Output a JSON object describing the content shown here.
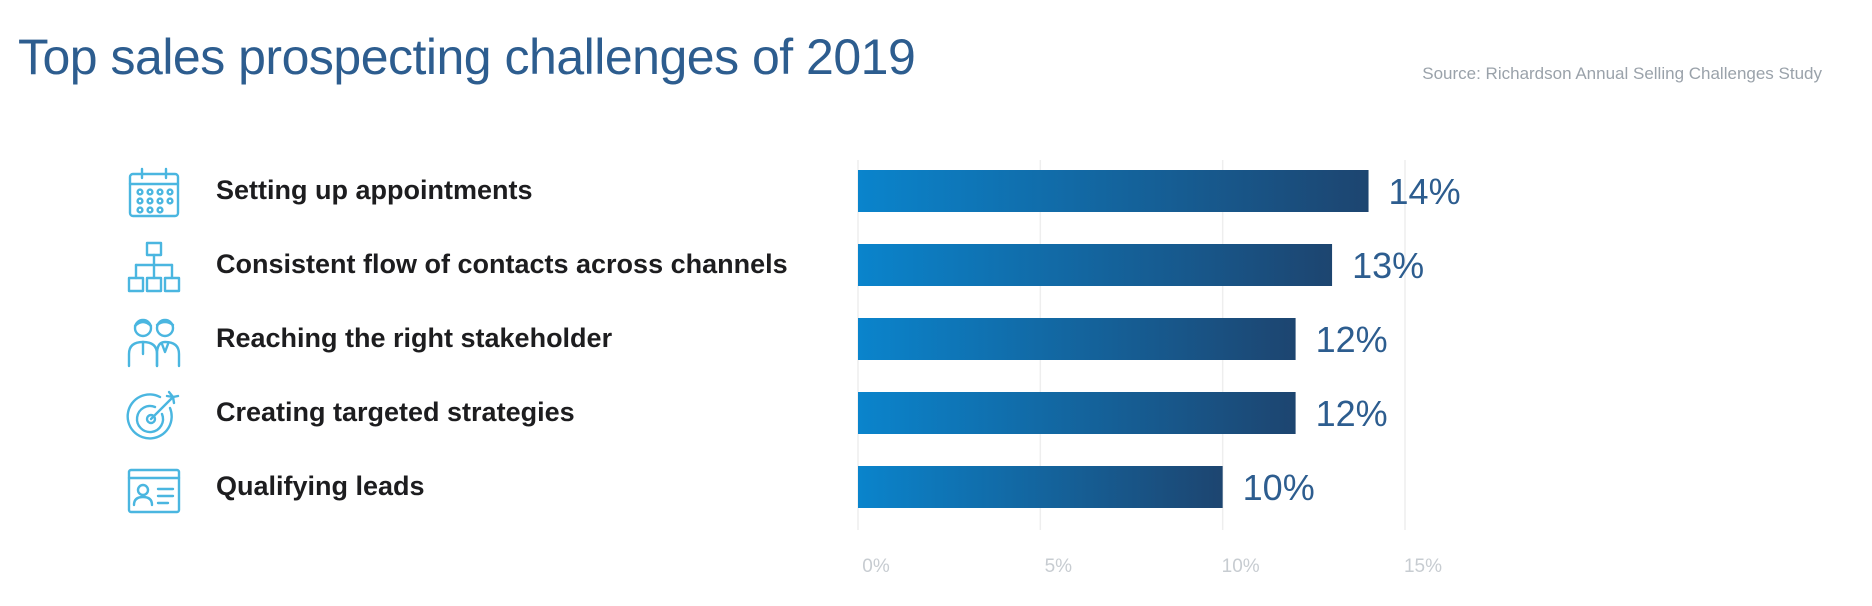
{
  "chart_data": {
    "type": "bar",
    "orientation": "horizontal",
    "title": "Top sales prospecting challenges of 2019",
    "source": "Source: Richardson Annual Selling Challenges Study",
    "categories": [
      "Setting up appointments",
      "Consistent flow of contacts across channels",
      "Reaching the right stakeholder",
      "Creating targeted strategies",
      "Qualifying leads"
    ],
    "values": [
      14,
      13,
      12,
      12,
      10
    ],
    "value_labels": [
      "14%",
      "13%",
      "12%",
      "12%",
      "10%"
    ],
    "xlim": [
      0,
      15
    ],
    "x_ticks": [
      0,
      5,
      10,
      15
    ],
    "x_tick_labels": [
      "0%",
      "5%",
      "10%",
      "15%"
    ],
    "grid": "vertical",
    "legend": "none"
  },
  "icons": [
    "calendar-icon",
    "org-chart-icon",
    "people-icon",
    "target-icon",
    "id-card-icon"
  ],
  "colors": {
    "title": "#2d5d8f",
    "bar_start": "#0a84cc",
    "bar_end": "#1d4570",
    "value_label": "#2d5d8f",
    "icon": "#4ab6e0",
    "tick_label": "#c7ccd1",
    "grid": "#eeeeee"
  }
}
